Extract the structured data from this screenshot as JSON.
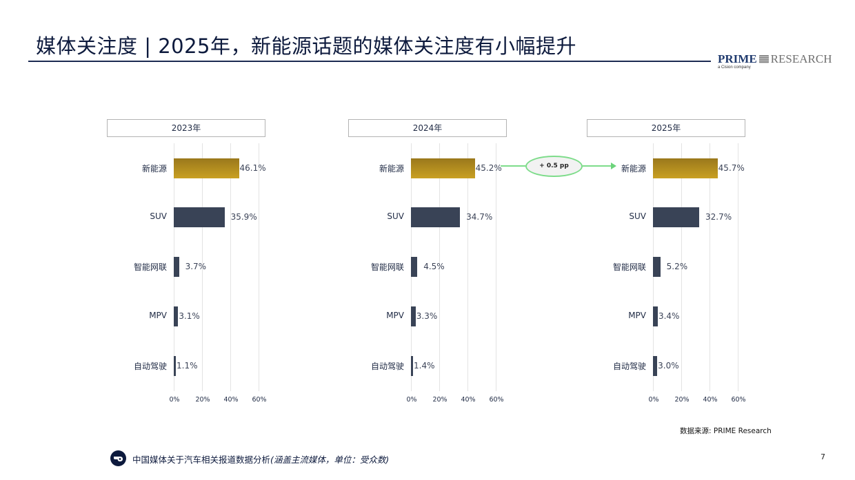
{
  "header": {
    "title": "媒体关注度 | 2025年，新能源话题的媒体关注度有小幅提升"
  },
  "logo": {
    "prime": "PRIME",
    "research": "RESEARCH",
    "subtitle": "a Cision company"
  },
  "panels": [
    {
      "year_label": "2023年",
      "rows": [
        {
          "category": "新能源",
          "value": "46.1%"
        },
        {
          "category": "SUV",
          "value": "35.9%"
        },
        {
          "category": "智能网联",
          "value": "3.7%"
        },
        {
          "category": "MPV",
          "value": "3.1%"
        },
        {
          "category": "自动驾驶",
          "value": "1.1%"
        }
      ]
    },
    {
      "year_label": "2024年",
      "rows": [
        {
          "category": "新能源",
          "value": "45.2%"
        },
        {
          "category": "SUV",
          "value": "34.7%"
        },
        {
          "category": "智能网联",
          "value": "4.5%"
        },
        {
          "category": "MPV",
          "value": "3.3%"
        },
        {
          "category": "自动驾驶",
          "value": "1.4%"
        }
      ]
    },
    {
      "year_label": "2025年",
      "rows": [
        {
          "category": "新能源",
          "value": "45.7%"
        },
        {
          "category": "SUV",
          "value": "32.7%"
        },
        {
          "category": "智能网联",
          "value": "5.2%"
        },
        {
          "category": "MPV",
          "value": "3.4%"
        },
        {
          "category": "自动驾驶",
          "value": "3.0%"
        }
      ]
    }
  ],
  "axis_ticks": [
    "0%",
    "20%",
    "40%",
    "60%"
  ],
  "delta_callout": "+ 0.5 pp",
  "source": "数据来源: PRIME Research",
  "footer": {
    "text": "中国媒体关于汽车相关报道数据分析",
    "note": "(涵盖主流媒体，单位：受众数)",
    "page_number": "7"
  },
  "colors": {
    "ev_bar_top": "#9a781c",
    "ev_bar_bottom": "#c9a022",
    "other_bar": "#394356",
    "delta_green": "#7ddc8a",
    "title_navy": "#0d1a3d"
  },
  "chart_data": [
    {
      "type": "bar",
      "orientation": "horizontal",
      "title": "2023年",
      "categories": [
        "新能源",
        "SUV",
        "智能网联",
        "MPV",
        "自动驾驶"
      ],
      "values": [
        46.1,
        35.9,
        3.7,
        3.1,
        1.1
      ],
      "xlabel": "",
      "ylabel": "",
      "xlim": [
        0,
        60
      ],
      "xticks": [
        "0%",
        "20%",
        "40%",
        "60%"
      ],
      "grid": true,
      "unit": "%"
    },
    {
      "type": "bar",
      "orientation": "horizontal",
      "title": "2024年",
      "categories": [
        "新能源",
        "SUV",
        "智能网联",
        "MPV",
        "自动驾驶"
      ],
      "values": [
        45.2,
        34.7,
        4.5,
        3.3,
        1.4
      ],
      "xlabel": "",
      "ylabel": "",
      "xlim": [
        0,
        60
      ],
      "xticks": [
        "0%",
        "20%",
        "40%",
        "60%"
      ],
      "grid": true,
      "unit": "%"
    },
    {
      "type": "bar",
      "orientation": "horizontal",
      "title": "2025年",
      "categories": [
        "新能源",
        "SUV",
        "智能网联",
        "MPV",
        "自动驾驶"
      ],
      "values": [
        45.7,
        32.7,
        5.2,
        3.4,
        3.0
      ],
      "xlabel": "",
      "ylabel": "",
      "xlim": [
        0,
        60
      ],
      "xticks": [
        "0%",
        "20%",
        "40%",
        "60%"
      ],
      "grid": true,
      "unit": "%",
      "annotations": [
        "+ 0.5 pp (新能源, 2024→2025)"
      ]
    }
  ]
}
